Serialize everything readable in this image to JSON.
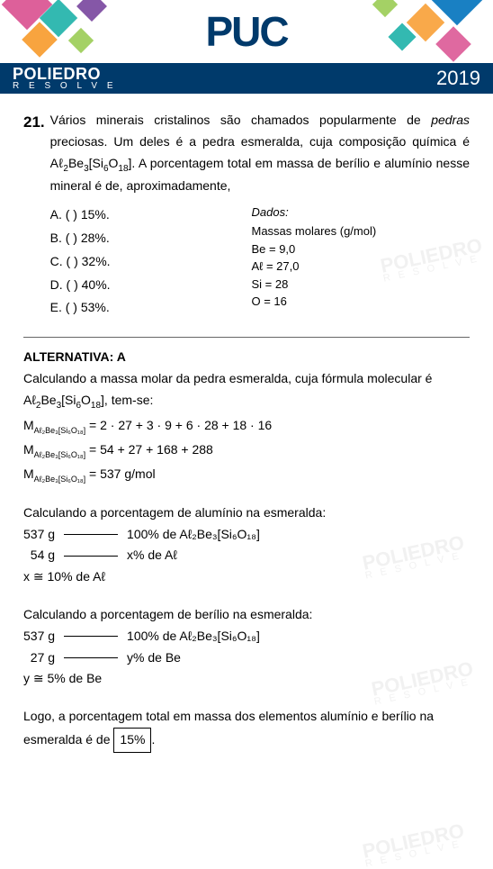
{
  "banner": {
    "logo": "PUC",
    "deco_colors": [
      "#d94f8f",
      "#00a79d",
      "#f7941d",
      "#662d91",
      "#8dc63f",
      "#0072bc"
    ]
  },
  "subheader": {
    "brand_line1": "POLIEDRO",
    "brand_line2": "R E S O L V E",
    "year": "2019",
    "bg_color": "#003a6b"
  },
  "watermark": {
    "line1": "POLIEDRO",
    "line2": "R E S O L V E"
  },
  "question": {
    "number": "21.",
    "text_parts": {
      "p1": "Vários minerais cristalinos são chamados popularmente de ",
      "p1_em": "pedras",
      "p2": " preciosas. Um deles é a pedra esmeralda, cuja composição química é Aℓ",
      "f_sub1": "2",
      "f_mid": "Be",
      "f_sub2": "3",
      "f_br1": "[Si",
      "f_sub3": "6",
      "f_o": "O",
      "f_sub4": "18",
      "f_br2": "]. A porcentagem total em massa de berílio e alumínio nesse mineral é de, aproximadamente,"
    },
    "options": {
      "A": "A. (    )  15%.",
      "B": "B. (    )  28%.",
      "C": "C. (    )  32%.",
      "D": "D. (    )  40%.",
      "E": "E. (    )  53%."
    },
    "dados_title": "Dados:",
    "dados_sub": "Massas molares (g/mol)",
    "dados_lines": {
      "be": "Be = 9,0",
      "al": "Aℓ = 27,0",
      "si": "Si = 28",
      "o": "O = 16"
    }
  },
  "answer": {
    "title": "ALTERNATIVA: A",
    "intro_a": "Calculando a massa molar da pedra esmeralda, cuja fórmula molecular é Aℓ",
    "intro_sub1": "2",
    "intro_b": "Be",
    "intro_sub2": "3",
    "intro_c": "[Si",
    "intro_sub3": "6",
    "intro_d": "O",
    "intro_sub4": "18",
    "intro_e": "], tem-se:",
    "m_label_prefix": "M",
    "m_sub_formula": "Aℓ₂Be₃[Si₆O₁₈]",
    "m_line1": " = 2 · 27 + 3 · 9 + 6 · 28 + 18 · 16",
    "m_line2": " = 54 + 27 + 168 + 288",
    "m_line3": " = 537 g/mol",
    "al_title": "Calculando a porcentagem de alumínio na esmeralda:",
    "al_l1_left": "537 g",
    "al_l1_right": "100% de Aℓ₂Be₃[Si₆O₁₈]",
    "al_l2_left": "  54 g",
    "al_l2_right": "x% de Aℓ",
    "al_res": "x ≅ 10% de Aℓ",
    "be_title": "Calculando a porcentagem de berílio na esmeralda:",
    "be_l1_left": "537 g",
    "be_l1_right": "100% de Aℓ₂Be₃[Si₆O₁₈]",
    "be_l2_left": "  27 g",
    "be_l2_right": "y% de Be",
    "be_res": "y ≅ 5% de Be",
    "final_a": "Logo, a porcentagem total em massa dos elementos alumínio e berílio na esmeralda é de ",
    "final_box": "15%",
    "final_b": "."
  }
}
